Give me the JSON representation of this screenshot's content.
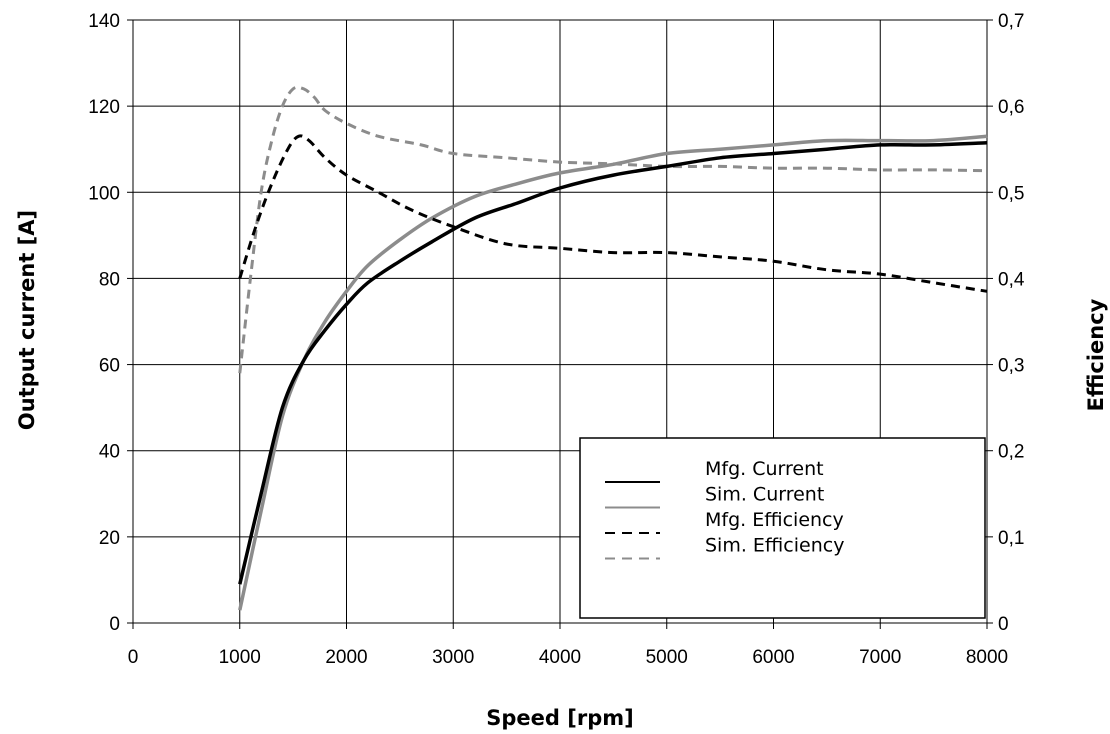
{
  "chart_data": {
    "type": "line",
    "xlabel": "Speed [rpm]",
    "ylabel_left": "Output current [A]",
    "ylabel_right": "Efficiency",
    "xlim": [
      0,
      8000
    ],
    "ylim_left": [
      0,
      140
    ],
    "ylim_right": [
      0,
      0.7
    ],
    "x_ticks": [
      "0",
      "1000",
      "2000",
      "3000",
      "4000",
      "5000",
      "6000",
      "7000",
      "8000"
    ],
    "y_left_ticks": [
      "0",
      "20",
      "40",
      "60",
      "80",
      "100",
      "120",
      "140"
    ],
    "y_right_ticks": [
      "0",
      "0,1",
      "0,2",
      "0,3",
      "0,4",
      "0,5",
      "0,6",
      "0,7"
    ],
    "grid": true,
    "legend_position": "bottom-right",
    "series": [
      {
        "name": "Mfg. Current",
        "axis": "left",
        "color": "#000000",
        "dash": "solid",
        "x": [
          1000,
          1200,
          1400,
          1600,
          1800,
          2000,
          2200,
          2500,
          2800,
          3200,
          3600,
          4000,
          4500,
          5000,
          5500,
          6000,
          6500,
          7000,
          7500,
          8000
        ],
        "y": [
          9,
          30,
          50,
          61,
          68,
          74,
          79,
          84,
          88.5,
          94,
          97.5,
          101,
          104,
          106,
          108,
          109,
          110,
          111,
          111,
          111.5
        ]
      },
      {
        "name": "Sim. Current",
        "axis": "left",
        "color": "#8c8c8c",
        "dash": "solid",
        "x": [
          1000,
          1200,
          1400,
          1600,
          1800,
          2000,
          2200,
          2500,
          2800,
          3200,
          3600,
          4000,
          4500,
          5000,
          5500,
          6000,
          6500,
          7000,
          7500,
          8000
        ],
        "y": [
          3,
          26,
          48,
          61,
          70,
          77,
          83,
          89,
          94,
          99,
          102,
          104.5,
          106.5,
          109,
          110,
          111,
          112,
          112,
          112,
          113
        ]
      },
      {
        "name": "Mfg. Efficiency",
        "axis": "right",
        "color": "#000000",
        "dash": "dashed",
        "x": [
          1000,
          1150,
          1300,
          1450,
          1550,
          1650,
          1800,
          2000,
          2300,
          2600,
          3000,
          3500,
          4000,
          4500,
          5000,
          5500,
          6000,
          6500,
          7000,
          7500,
          8000
        ],
        "y": [
          0.4,
          0.46,
          0.51,
          0.55,
          0.565,
          0.56,
          0.54,
          0.52,
          0.5,
          0.48,
          0.46,
          0.44,
          0.435,
          0.43,
          0.43,
          0.425,
          0.42,
          0.41,
          0.405,
          0.395,
          0.385
        ]
      },
      {
        "name": "Sim. Efficiency",
        "axis": "right",
        "color": "#8c8c8c",
        "dash": "dashed",
        "x": [
          1000,
          1100,
          1200,
          1300,
          1400,
          1500,
          1600,
          1700,
          1800,
          2000,
          2300,
          2700,
          3000,
          3500,
          4000,
          4500,
          5000,
          5500,
          6000,
          6500,
          7000,
          7500,
          8000
        ],
        "y": [
          0.29,
          0.4,
          0.5,
          0.56,
          0.6,
          0.62,
          0.62,
          0.61,
          0.595,
          0.58,
          0.565,
          0.555,
          0.545,
          0.54,
          0.535,
          0.533,
          0.53,
          0.53,
          0.528,
          0.528,
          0.526,
          0.526,
          0.525
        ]
      }
    ]
  }
}
